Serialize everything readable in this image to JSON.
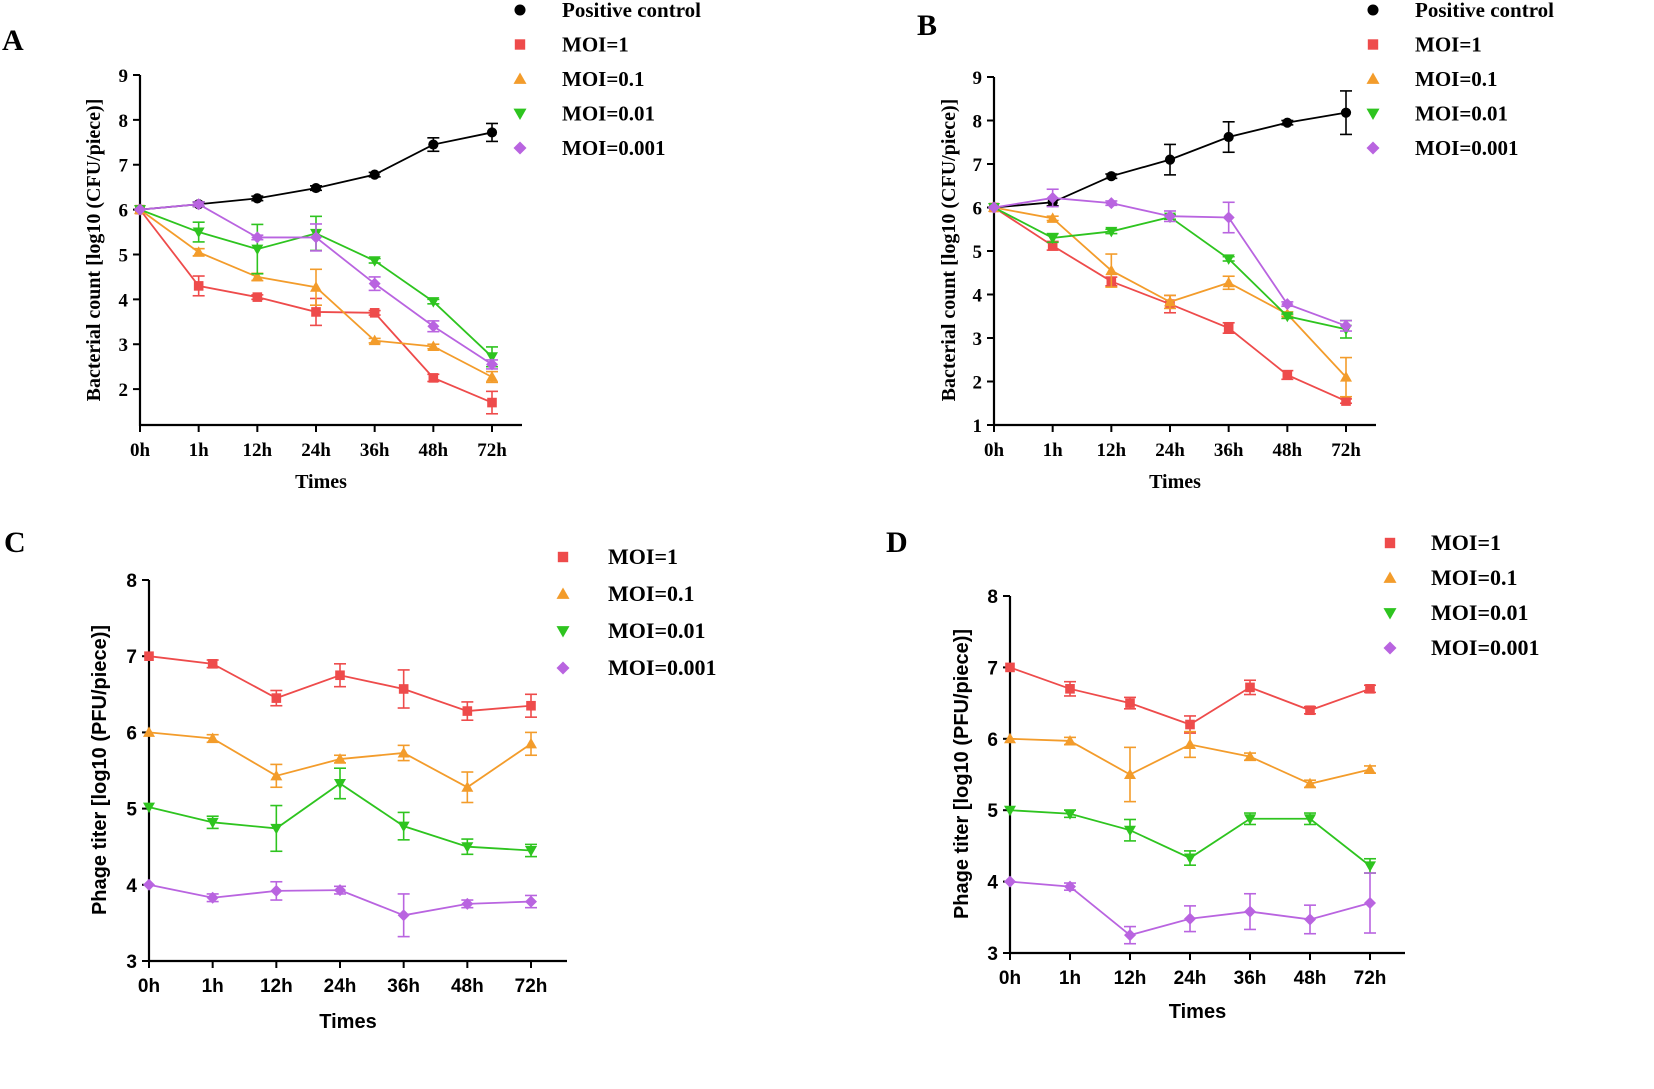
{
  "colors": {
    "Positive control": "#000000",
    "MOI=1": "#ee4b4b",
    "MOI=0.1": "#f39c2b",
    "MOI=0.01": "#2ec41f",
    "MOI=0.001": "#b964e0"
  },
  "markers": {
    "Positive control": "circle",
    "MOI=1": "square",
    "MOI=0.1": "triangle-up",
    "MOI=0.01": "triangle-down",
    "MOI=0.001": "diamond"
  },
  "chart_data": [
    {
      "panel": "A",
      "type": "line",
      "xlabel": "Times",
      "ylabel": "Bacterial count [log10 (CFU/piece)]",
      "ylim": [
        1.2,
        9
      ],
      "yticks": [
        2,
        3,
        4,
        5,
        6,
        7,
        8,
        9
      ],
      "categories": [
        "0h",
        "1h",
        "12h",
        "24h",
        "36h",
        "48h",
        "72h"
      ],
      "series": [
        {
          "name": "Positive control",
          "values": [
            6.0,
            6.12,
            6.25,
            6.48,
            6.78,
            7.45,
            7.72
          ],
          "errors": [
            0,
            0.05,
            0.05,
            0.05,
            0.05,
            0.15,
            0.2
          ]
        },
        {
          "name": "MOI=1",
          "values": [
            6.0,
            4.3,
            4.05,
            3.72,
            3.7,
            2.25,
            1.7
          ],
          "errors": [
            0,
            0.22,
            0.05,
            0.3,
            0.05,
            0.08,
            0.25
          ]
        },
        {
          "name": "MOI=0.1",
          "values": [
            6.0,
            5.05,
            4.5,
            4.27,
            3.08,
            2.95,
            2.27
          ],
          "errors": [
            0,
            0.08,
            0.08,
            0.4,
            0.05,
            0.05,
            0.12
          ]
        },
        {
          "name": "MOI=0.01",
          "values": [
            6.0,
            5.5,
            5.12,
            5.47,
            4.86,
            3.95,
            2.72
          ],
          "errors": [
            0,
            0.22,
            0.55,
            0.38,
            0.05,
            0.05,
            0.22
          ]
        },
        {
          "name": "MOI=0.001",
          "values": [
            6.0,
            6.12,
            5.38,
            5.38,
            4.35,
            3.4,
            2.55
          ],
          "errors": [
            0,
            0.05,
            0.05,
            0.3,
            0.15,
            0.12,
            0.1
          ]
        }
      ]
    },
    {
      "panel": "B",
      "type": "line",
      "xlabel": "Times",
      "ylabel": "Bacterial count [log10 (CFU/piece)]",
      "ylim": [
        1,
        9
      ],
      "yticks": [
        1,
        2,
        3,
        4,
        5,
        6,
        7,
        8,
        9
      ],
      "categories": [
        "0h",
        "1h",
        "12h",
        "24h",
        "36h",
        "48h",
        "72h"
      ],
      "series": [
        {
          "name": "Positive control",
          "values": [
            6.0,
            6.12,
            6.72,
            7.1,
            7.62,
            7.95,
            8.18
          ],
          "errors": [
            0,
            0.08,
            0.05,
            0.35,
            0.35,
            0.05,
            0.5
          ]
        },
        {
          "name": "MOI=1",
          "values": [
            6.0,
            5.12,
            4.3,
            3.78,
            3.23,
            2.15,
            1.55
          ],
          "errors": [
            0,
            0.1,
            0.1,
            0.2,
            0.12,
            0.1,
            0.05
          ]
        },
        {
          "name": "MOI=0.1",
          "values": [
            6.0,
            5.75,
            4.55,
            3.83,
            4.27,
            3.55,
            2.1
          ],
          "errors": [
            0,
            0.05,
            0.38,
            0.15,
            0.15,
            0.05,
            0.45
          ]
        },
        {
          "name": "MOI=0.01",
          "values": [
            6.0,
            5.3,
            5.45,
            5.78,
            4.82,
            3.5,
            3.2
          ],
          "errors": [
            0,
            0.1,
            0.05,
            0.05,
            0.05,
            0.05,
            0.2
          ]
        },
        {
          "name": "MOI=0.001",
          "values": [
            6.0,
            6.22,
            6.1,
            5.8,
            5.77,
            3.78,
            3.28
          ],
          "errors": [
            0,
            0.2,
            0.05,
            0.12,
            0.35,
            0.05,
            0.12
          ]
        }
      ]
    },
    {
      "panel": "C",
      "type": "line",
      "xlabel": "Times",
      "ylabel": "Phage titer [log10 (PFU/piece)]",
      "ylim": [
        3,
        8
      ],
      "yticks": [
        3,
        4,
        5,
        6,
        7,
        8
      ],
      "categories": [
        "0h",
        "1h",
        "12h",
        "24h",
        "36h",
        "48h",
        "72h"
      ],
      "series": [
        {
          "name": "MOI=1",
          "values": [
            7.0,
            6.9,
            6.45,
            6.75,
            6.57,
            6.28,
            6.35
          ],
          "errors": [
            0,
            0.05,
            0.1,
            0.15,
            0.25,
            0.12,
            0.15
          ]
        },
        {
          "name": "MOI=0.1",
          "values": [
            6.0,
            5.92,
            5.43,
            5.65,
            5.73,
            5.28,
            5.85
          ],
          "errors": [
            0,
            0.05,
            0.15,
            0.05,
            0.1,
            0.2,
            0.15
          ]
        },
        {
          "name": "MOI=0.01",
          "values": [
            5.02,
            4.82,
            4.74,
            5.33,
            4.77,
            4.5,
            4.45
          ],
          "errors": [
            0,
            0.08,
            0.3,
            0.2,
            0.18,
            0.1,
            0.08
          ]
        },
        {
          "name": "MOI=0.001",
          "values": [
            4.0,
            3.83,
            3.92,
            3.93,
            3.6,
            3.75,
            3.78
          ],
          "errors": [
            0,
            0.05,
            0.12,
            0.05,
            0.28,
            0.05,
            0.08
          ]
        }
      ]
    },
    {
      "panel": "D",
      "type": "line",
      "xlabel": "Times",
      "ylabel": "Phage titer [log10 (PFU/piece)]",
      "ylim": [
        3,
        8
      ],
      "yticks": [
        3,
        4,
        5,
        6,
        7,
        8
      ],
      "categories": [
        "0h",
        "1h",
        "12h",
        "24h",
        "36h",
        "48h",
        "72h"
      ],
      "series": [
        {
          "name": "MOI=1",
          "values": [
            7.0,
            6.7,
            6.5,
            6.2,
            6.72,
            6.4,
            6.7
          ],
          "errors": [
            0,
            0.1,
            0.08,
            0.12,
            0.1,
            0.05,
            0.05
          ]
        },
        {
          "name": "MOI=0.1",
          "values": [
            6.0,
            5.97,
            5.5,
            5.92,
            5.75,
            5.37,
            5.57
          ],
          "errors": [
            0,
            0.05,
            0.38,
            0.18,
            0.05,
            0.05,
            0.05
          ]
        },
        {
          "name": "MOI=0.01",
          "values": [
            5.0,
            4.95,
            4.72,
            4.33,
            4.88,
            4.88,
            4.22
          ],
          "errors": [
            0,
            0.05,
            0.15,
            0.1,
            0.08,
            0.08,
            0.1
          ]
        },
        {
          "name": "MOI=0.001",
          "values": [
            4.0,
            3.93,
            3.25,
            3.48,
            3.58,
            3.47,
            3.7
          ],
          "errors": [
            0,
            0.05,
            0.12,
            0.18,
            0.25,
            0.2,
            0.42
          ]
        }
      ]
    }
  ]
}
